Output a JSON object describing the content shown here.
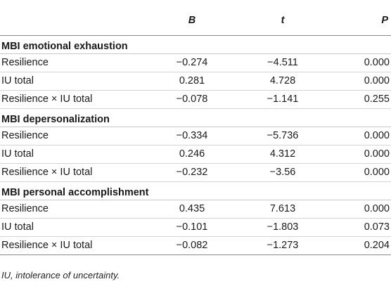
{
  "table": {
    "headers": [
      "",
      "B",
      "t",
      "P"
    ],
    "sections": [
      {
        "title": "MBI emotional exhaustion",
        "rows": [
          {
            "label": "Resilience",
            "b": "−0.274",
            "t": "−4.511",
            "p": "0.000"
          },
          {
            "label": "IU total",
            "b": "0.281",
            "t": "4.728",
            "p": "0.000"
          },
          {
            "label": "Resilience × IU total",
            "b": "−0.078",
            "t": "−1.141",
            "p": "0.255"
          }
        ]
      },
      {
        "title": "MBI depersonalization",
        "rows": [
          {
            "label": "Resilience",
            "b": "−0.334",
            "t": "−5.736",
            "p": "0.000"
          },
          {
            "label": "IU total",
            "b": "0.246",
            "t": "4.312",
            "p": "0.000"
          },
          {
            "label": "Resilience × IU total",
            "b": "−0.232",
            "t": "−3.56",
            "p": "0.000"
          }
        ]
      },
      {
        "title": "MBI personal accomplishment",
        "rows": [
          {
            "label": "Resilience",
            "b": "0.435",
            "t": "7.613",
            "p": "0.000"
          },
          {
            "label": "IU total",
            "b": "−0.101",
            "t": "−1.803",
            "p": "0.073"
          },
          {
            "label": "Resilience × IU total",
            "b": "−0.082",
            "t": "−1.273",
            "p": "0.204"
          }
        ]
      }
    ]
  },
  "footnote": "IU, intolerance of uncertainty."
}
